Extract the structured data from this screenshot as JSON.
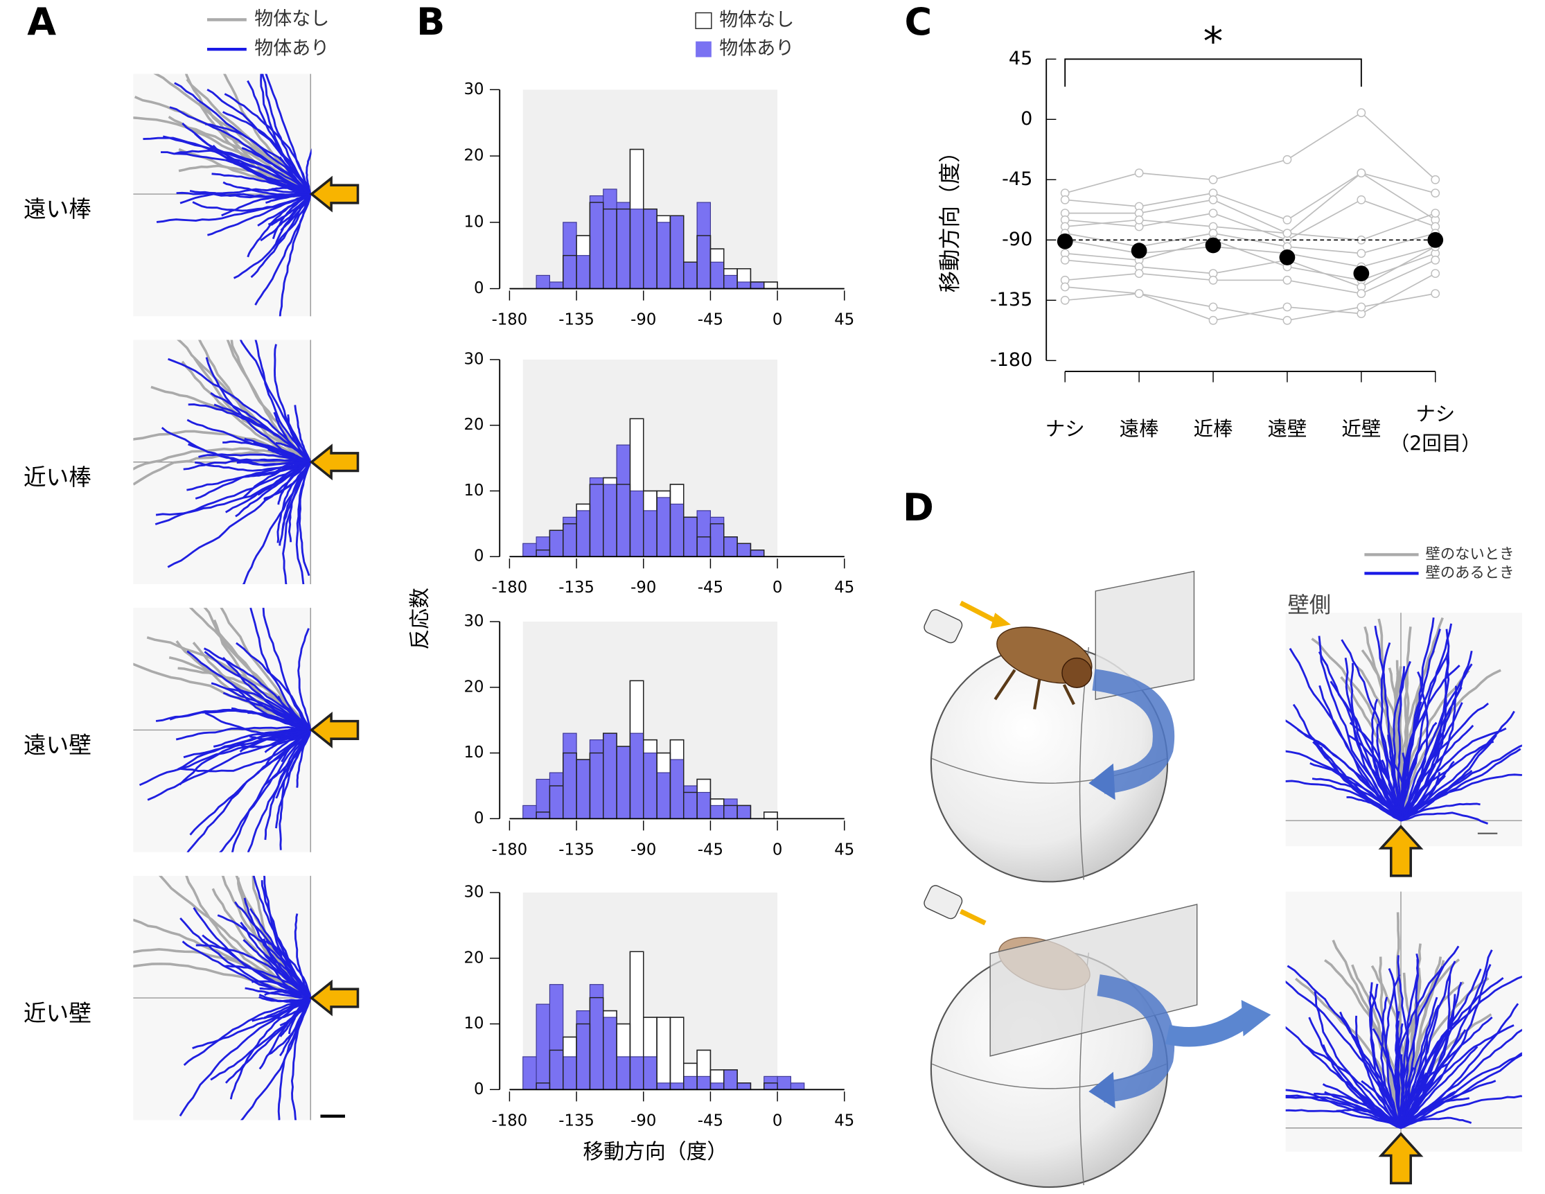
{
  "panel_labels": [
    "A",
    "B",
    "C",
    "D"
  ],
  "panel_a": {
    "legend": [
      "物体なし",
      "物体あり"
    ],
    "rows": [
      "遠い棒",
      "近い棒",
      "遠い壁",
      "近い壁"
    ]
  },
  "panel_d": {
    "legend": [
      "壁のないとき",
      "壁のあるとき"
    ],
    "side_label": "壁側"
  },
  "chart_data": [
    {
      "type": "histogram",
      "y_label": "反応数",
      "bins": [
        -180,
        -171,
        -162,
        -153,
        -144,
        -135,
        -126,
        -117,
        -108,
        -99,
        -90,
        -81,
        -72,
        -63,
        -54,
        -45,
        -36,
        -27,
        -18,
        -9,
        0,
        9,
        18,
        27,
        36,
        45
      ],
      "series": [
        {
          "name": "物体なし",
          "color": "#ffffff",
          "values": [
            0,
            0,
            0,
            0,
            5,
            8,
            13,
            12,
            12,
            21,
            12,
            11,
            11,
            4,
            8,
            6,
            3,
            3,
            1,
            1,
            0,
            0,
            0,
            0,
            0
          ]
        },
        {
          "name": "物体あり",
          "color": "#7a72f2",
          "values": [
            0,
            0,
            2,
            1,
            10,
            5,
            14,
            15,
            13,
            12,
            12,
            10,
            11,
            4,
            13,
            4,
            2,
            1,
            1,
            0,
            0,
            0,
            0,
            0,
            0
          ]
        }
      ],
      "xlim": [
        -180,
        45
      ],
      "xticks": [
        -180,
        -135,
        -90,
        -45,
        0,
        45
      ],
      "ylim": [
        0,
        30
      ],
      "yticks": [
        0,
        10,
        20,
        30
      ]
    },
    {
      "type": "histogram",
      "bins": [
        -180,
        -171,
        -162,
        -153,
        -144,
        -135,
        -126,
        -117,
        -108,
        -99,
        -90,
        -81,
        -72,
        -63,
        -54,
        -45,
        -36,
        -27,
        -18,
        -9,
        0,
        9,
        18,
        27,
        36,
        45
      ],
      "series": [
        {
          "color": "#ffffff",
          "values": [
            0,
            0,
            1,
            4,
            5,
            8,
            11,
            12,
            11,
            21,
            10,
            10,
            11,
            6,
            3,
            5,
            3,
            2,
            1,
            0,
            0,
            0,
            0,
            0,
            0
          ]
        },
        {
          "color": "#7a72f2",
          "values": [
            0,
            2,
            3,
            4,
            6,
            7,
            12,
            11,
            17,
            10,
            7,
            9,
            8,
            6,
            7,
            6,
            3,
            2,
            1,
            0,
            0,
            0,
            0,
            0,
            0
          ]
        }
      ],
      "xlim": [
        -180,
        45
      ],
      "xticks": [
        -180,
        -135,
        -90,
        -45,
        0,
        45
      ],
      "ylim": [
        0,
        30
      ],
      "yticks": [
        0,
        10,
        20,
        30
      ]
    },
    {
      "type": "histogram",
      "bins": [
        -180,
        -171,
        -162,
        -153,
        -144,
        -135,
        -126,
        -117,
        -108,
        -99,
        -90,
        -81,
        -72,
        -63,
        -54,
        -45,
        -36,
        -27,
        -18,
        -9,
        0,
        9,
        18,
        27,
        36,
        45
      ],
      "series": [
        {
          "color": "#ffffff",
          "values": [
            0,
            0,
            1,
            5,
            10,
            9,
            10,
            13,
            11,
            21,
            12,
            10,
            12,
            4,
            6,
            3,
            2,
            2,
            0,
            1,
            0,
            0,
            0,
            0,
            0
          ]
        },
        {
          "color": "#7a72f2",
          "values": [
            0,
            2,
            6,
            7,
            13,
            9,
            12,
            13,
            11,
            13,
            10,
            7,
            9,
            5,
            4,
            2,
            3,
            2,
            0,
            0,
            0,
            0,
            0,
            0,
            0
          ]
        }
      ],
      "xlim": [
        -180,
        45
      ],
      "xticks": [
        -180,
        -135,
        -90,
        -45,
        0,
        45
      ],
      "ylim": [
        0,
        30
      ],
      "yticks": [
        0,
        10,
        20,
        30
      ]
    },
    {
      "type": "histogram",
      "x_label": "移動方向（度）",
      "bins": [
        -180,
        -171,
        -162,
        -153,
        -144,
        -135,
        -126,
        -117,
        -108,
        -99,
        -90,
        -81,
        -72,
        -63,
        -54,
        -45,
        -36,
        -27,
        -18,
        -9,
        0,
        9,
        18,
        27,
        36,
        45
      ],
      "series": [
        {
          "color": "#ffffff",
          "values": [
            0,
            0,
            1,
            6,
            8,
            10,
            14,
            12,
            10,
            21,
            11,
            11,
            11,
            4,
            6,
            3,
            3,
            1,
            0,
            1,
            0,
            0,
            0,
            0,
            0
          ]
        },
        {
          "color": "#7a72f2",
          "values": [
            0,
            5,
            13,
            16,
            5,
            12,
            16,
            11,
            5,
            5,
            5,
            1,
            1,
            2,
            2,
            1,
            3,
            1,
            0,
            2,
            2,
            1,
            0,
            0,
            0
          ]
        }
      ],
      "xlim": [
        -180,
        45
      ],
      "xticks": [
        -180,
        -135,
        -90,
        -45,
        0,
        45
      ],
      "ylim": [
        0,
        30
      ],
      "yticks": [
        0,
        10,
        20,
        30
      ]
    },
    {
      "type": "dot",
      "y_label": "移動方向（度）",
      "categories": [
        "ナシ",
        "遠棒",
        "近棒",
        "遠壁",
        "近壁",
        "ナシ\n（2回目）"
      ],
      "ylim": [
        -180,
        45
      ],
      "yticks": [
        -180,
        -135,
        -90,
        -45,
        0,
        45
      ],
      "hline": -90,
      "annotation": {
        "text": "*",
        "categories": [
          0,
          4
        ]
      },
      "individuals": {
        "color": "#bdbdbd",
        "values": [
          [
            -55,
            -40,
            -45,
            -30,
            5,
            -45
          ],
          [
            -60,
            -65,
            -55,
            -75,
            -40,
            -55
          ],
          [
            -70,
            -70,
            -60,
            -85,
            -40,
            -75
          ],
          [
            -75,
            -80,
            -70,
            -90,
            -60,
            -80
          ],
          [
            -80,
            -75,
            -80,
            -85,
            -90,
            -70
          ],
          [
            -85,
            -95,
            -85,
            -95,
            -100,
            -85
          ],
          [
            -90,
            -100,
            -95,
            -100,
            -110,
            -95
          ],
          [
            -100,
            -105,
            -90,
            -110,
            -120,
            -100
          ],
          [
            -105,
            -110,
            -115,
            -105,
            -125,
            -95
          ],
          [
            -120,
            -115,
            -120,
            -120,
            -130,
            -105
          ],
          [
            -125,
            -130,
            -150,
            -140,
            -145,
            -115
          ],
          [
            -135,
            -130,
            -140,
            -150,
            -140,
            -130
          ]
        ]
      },
      "series": [
        {
          "color": "#000000",
          "values": [
            -91,
            -98,
            -94,
            -103,
            -115,
            -90
          ]
        }
      ]
    }
  ]
}
